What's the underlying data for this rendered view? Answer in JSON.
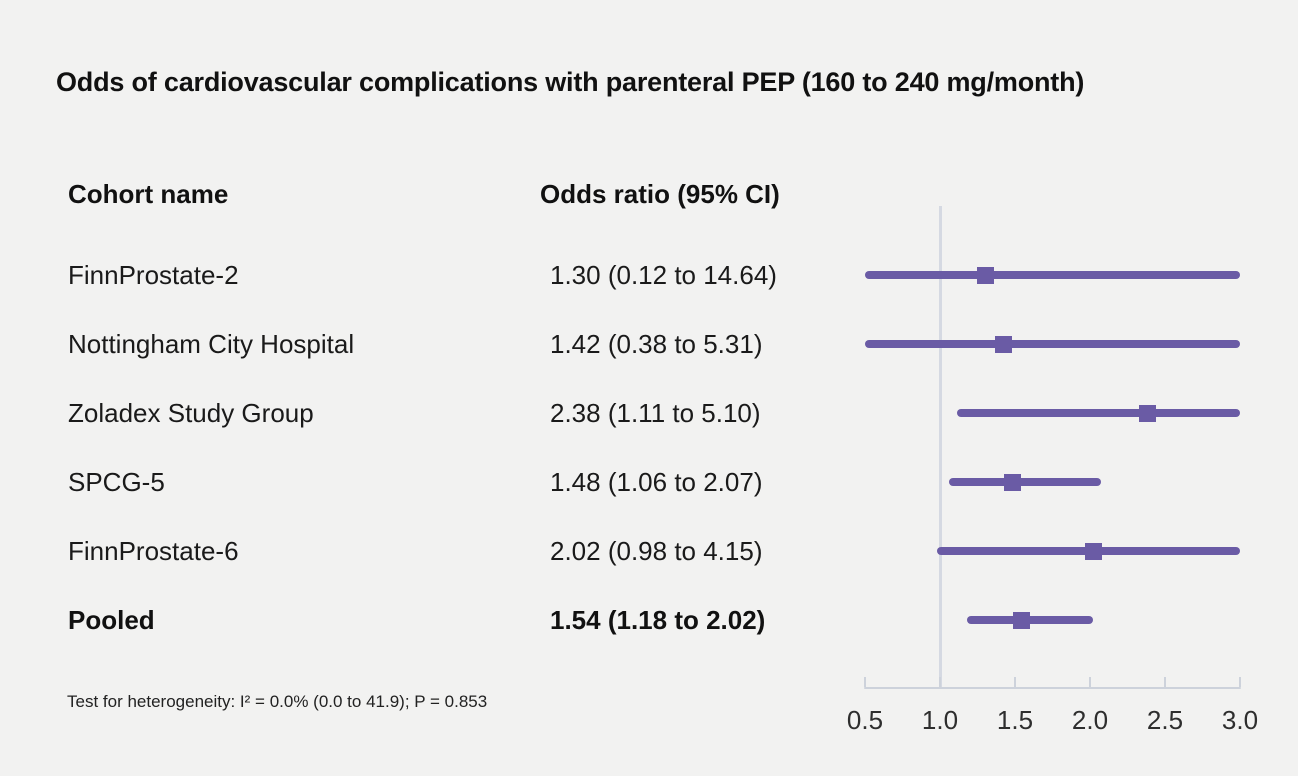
{
  "title": "Odds of cardiovascular complications with parenteral PEP (160 to 240 mg/month)",
  "columns": {
    "cohort": "Cohort name",
    "odds_ratio": "Odds ratio (95% CI)"
  },
  "footnote": "Test for heterogeneity: I² = 0.0% (0.0 to 41.9); P = 0.853",
  "colors": {
    "marker_purple": "#6a5ba5",
    "reference_line": "#d5d9e2",
    "axis": "#cdd2db",
    "background": "#f2f2f1",
    "text": "#1a1a1a"
  },
  "chart_data": {
    "type": "forest",
    "title": "Odds of cardiovascular complications with parenteral PEP (160 to 240 mg/month)",
    "xlabel": "",
    "legend": "none",
    "axis": {
      "min": 0.5,
      "max": 3.0,
      "ticks": [
        "0.5",
        "1.0",
        "1.5",
        "2.0",
        "2.5",
        "3.0"
      ],
      "tick_values": [
        0.5,
        1.0,
        1.5,
        2.0,
        2.5,
        3.0
      ],
      "reference_value": 1.0
    },
    "rows": [
      {
        "label": "FinnProstate-2",
        "or_text": "1.30 (0.12 to 14.64)",
        "or": 1.3,
        "lcl": 0.12,
        "ucl": 14.64,
        "bold": false
      },
      {
        "label": "Nottingham City Hospital",
        "or_text": "1.42 (0.38 to 5.31)",
        "or": 1.42,
        "lcl": 0.38,
        "ucl": 5.31,
        "bold": false
      },
      {
        "label": "Zoladex Study Group",
        "or_text": "2.38 (1.11 to 5.10)",
        "or": 2.38,
        "lcl": 1.11,
        "ucl": 5.1,
        "bold": false
      },
      {
        "label": "SPCG-5",
        "or_text": "1.48 (1.06 to 2.07)",
        "or": 1.48,
        "lcl": 1.06,
        "ucl": 2.07,
        "bold": false
      },
      {
        "label": "FinnProstate-6",
        "or_text": "2.02 (0.98 to 4.15)",
        "or": 2.02,
        "lcl": 0.98,
        "ucl": 4.15,
        "bold": false
      },
      {
        "label": "Pooled",
        "or_text": "1.54 (1.18 to 2.02)",
        "or": 1.54,
        "lcl": 1.18,
        "ucl": 2.02,
        "bold": true
      }
    ]
  }
}
